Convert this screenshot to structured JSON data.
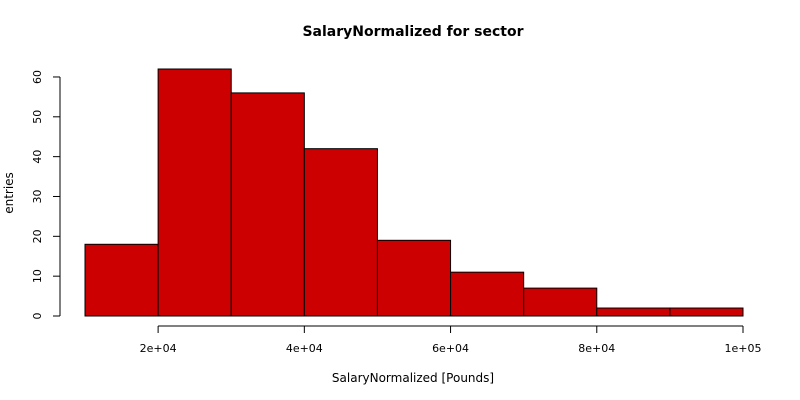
{
  "chart_data": {
    "type": "bar",
    "title": "SalaryNormalized for sector",
    "xlabel": "SalaryNormalized [Pounds]",
    "ylabel": "entries",
    "bins": [
      {
        "x0": 10000,
        "x1": 20000,
        "count": 18
      },
      {
        "x0": 20000,
        "x1": 30000,
        "count": 62
      },
      {
        "x0": 30000,
        "x1": 40000,
        "count": 56
      },
      {
        "x0": 40000,
        "x1": 50000,
        "count": 42
      },
      {
        "x0": 50000,
        "x1": 60000,
        "count": 19
      },
      {
        "x0": 60000,
        "x1": 70000,
        "count": 11
      },
      {
        "x0": 70000,
        "x1": 80000,
        "count": 7
      },
      {
        "x0": 80000,
        "x1": 90000,
        "count": 2
      },
      {
        "x0": 90000,
        "x1": 100000,
        "count": 2
      }
    ],
    "xlim": [
      10000,
      100000
    ],
    "ylim": [
      0,
      62
    ],
    "x_ticks": [
      20000,
      40000,
      60000,
      80000,
      100000
    ],
    "x_tick_labels": [
      "2e+04",
      "4e+04",
      "6e+04",
      "8e+04",
      "1e+05"
    ],
    "y_ticks": [
      0,
      10,
      20,
      30,
      40,
      50,
      60
    ],
    "y_tick_labels": [
      "0",
      "10",
      "20",
      "30",
      "40",
      "50",
      "60"
    ],
    "bar_color": "#cc0000",
    "bar_edge_color": "#000000",
    "grid": false
  }
}
